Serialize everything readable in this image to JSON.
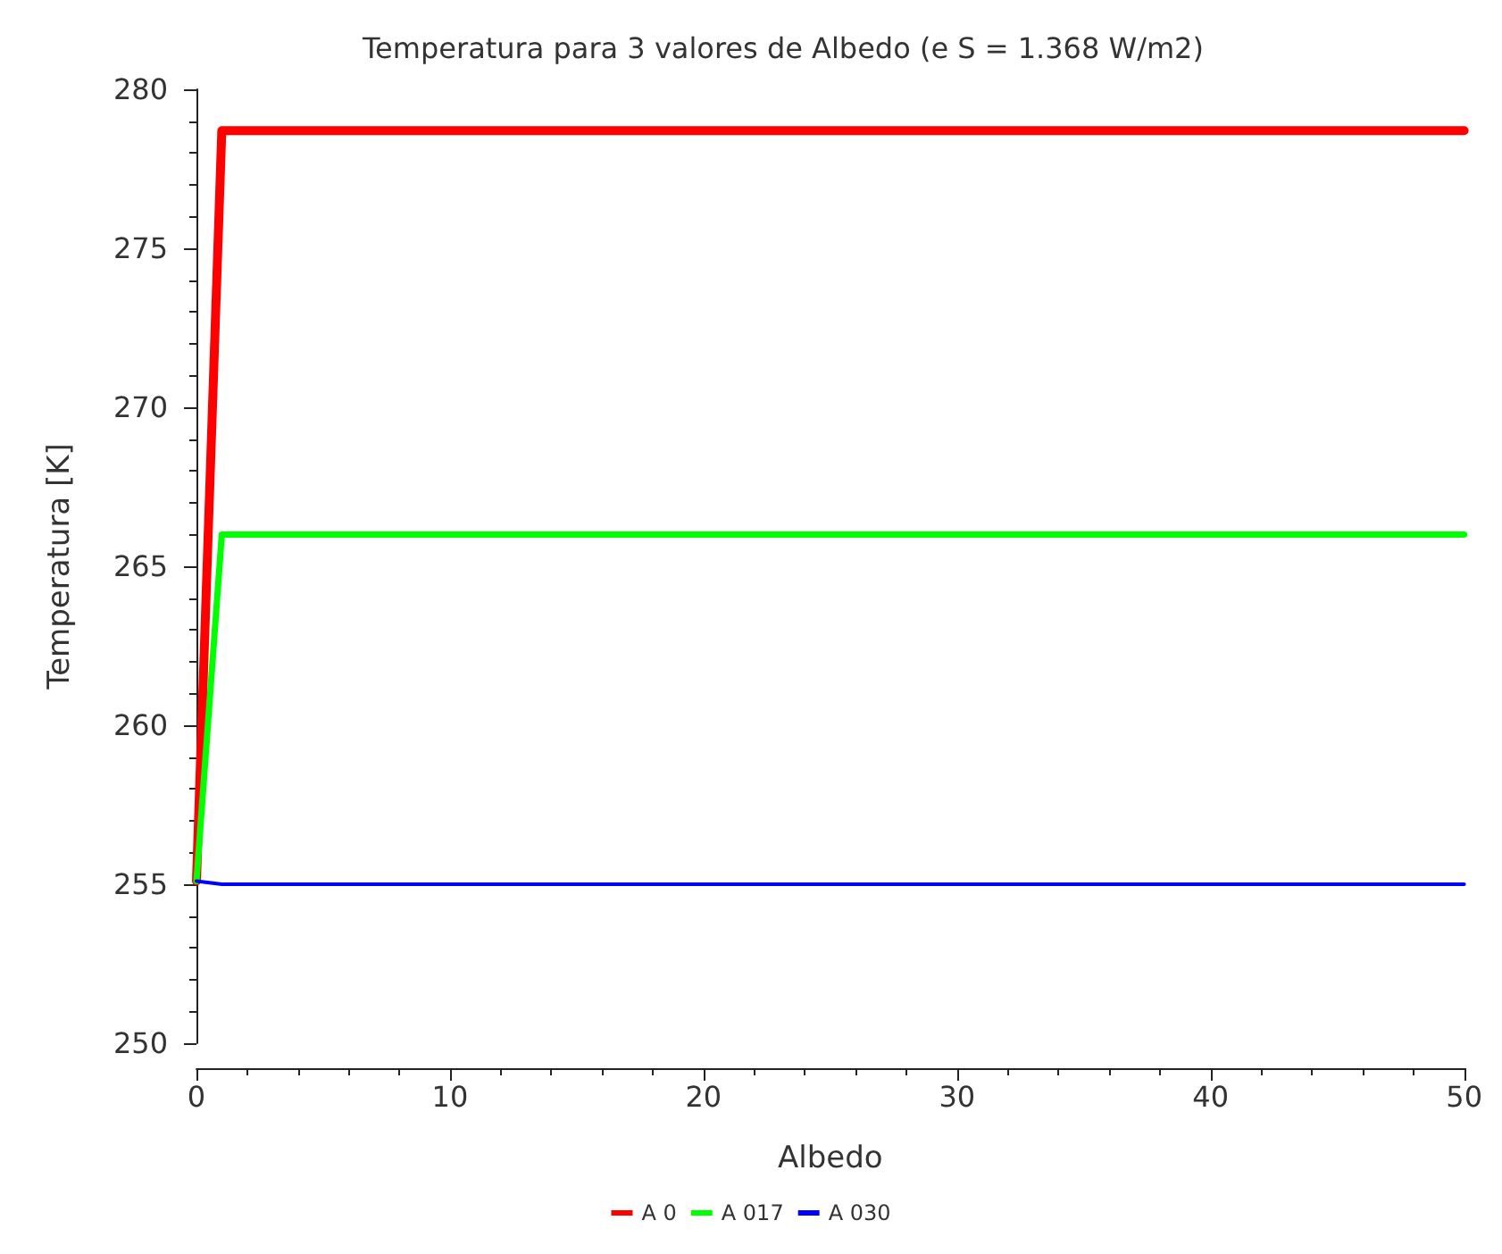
{
  "chart_data": {
    "type": "line",
    "title": "Temperatura para 3 valores de Albedo (e S = 1.368 W/m2)",
    "xlabel": "Albedo",
    "ylabel": "Temperatura [K]",
    "x": [
      0,
      1,
      50
    ],
    "series": [
      {
        "name": "A 0",
        "color": "#ff0000",
        "values": [
          255.1,
          278.7,
          278.7
        ]
      },
      {
        "name": "A 017",
        "color": "#00ff00",
        "values": [
          255.1,
          266.0,
          266.0
        ]
      },
      {
        "name": "A 030",
        "color": "#0000ff",
        "values": [
          255.1,
          255.0,
          255.0
        ]
      }
    ],
    "xlim": [
      0,
      50
    ],
    "xticks": [
      0,
      10,
      20,
      30,
      40,
      50
    ],
    "ylim": [
      250,
      280
    ],
    "yticks": [
      250,
      255,
      260,
      265,
      270,
      275,
      280
    ],
    "grid": false,
    "legend": "bottom",
    "marker": "none",
    "line_style": "solid"
  }
}
